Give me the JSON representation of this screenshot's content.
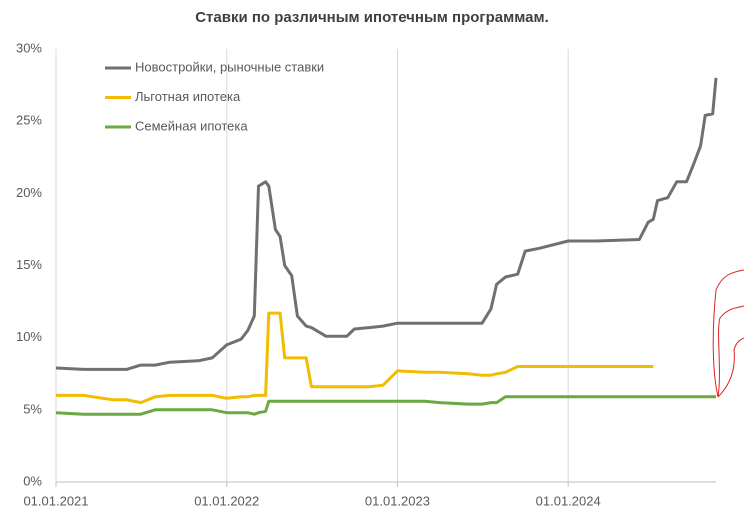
{
  "chart_data": {
    "type": "line",
    "title": "Ставки по различным ипотечным программам.",
    "x": [
      "2021-01-01",
      "2021-03-01",
      "2021-05-01",
      "2021-06-01",
      "2021-07-01",
      "2021-08-01",
      "2021-09-01",
      "2021-11-01",
      "2021-12-01",
      "2022-01-01",
      "2022-02-01",
      "2022-02-15",
      "2022-03-01",
      "2022-03-10",
      "2022-03-25",
      "2022-04-01",
      "2022-04-15",
      "2022-04-25",
      "2022-05-05",
      "2022-05-20",
      "2022-06-01",
      "2022-06-20",
      "2022-07-01",
      "2022-08-01",
      "2022-09-15",
      "2022-10-01",
      "2022-11-01",
      "2022-12-01",
      "2023-01-01",
      "2023-03-01",
      "2023-04-01",
      "2023-06-01",
      "2023-07-01",
      "2023-07-20",
      "2023-08-01",
      "2023-08-20",
      "2023-09-15",
      "2023-10-01",
      "2023-11-01",
      "2024-01-01",
      "2024-03-01",
      "2024-06-01",
      "2024-06-20",
      "2024-07-01",
      "2024-07-10",
      "2024-08-01",
      "2024-08-20",
      "2024-09-10",
      "2024-09-25",
      "2024-10-10",
      "2024-10-20",
      "2024-11-05",
      "2024-11-12"
    ],
    "series": [
      {
        "name": "Новостройки, рыночные ставки",
        "color": "#707070",
        "values": [
          7.9,
          7.8,
          7.8,
          7.8,
          8.1,
          8.1,
          8.3,
          8.4,
          8.6,
          9.5,
          9.9,
          10.5,
          11.5,
          20.5,
          20.8,
          20.5,
          17.5,
          17.0,
          15.0,
          14.3,
          11.5,
          10.8,
          10.7,
          10.1,
          10.1,
          10.6,
          10.7,
          10.8,
          11.0,
          11.0,
          11.0,
          11.0,
          11.0,
          12.0,
          13.7,
          14.2,
          14.4,
          16.0,
          16.2,
          16.7,
          16.7,
          16.8,
          18.0,
          18.2,
          19.5,
          19.7,
          20.8,
          20.8,
          22.0,
          23.3,
          25.4,
          25.5,
          28.0
        ]
      },
      {
        "name": "Льготная ипотека",
        "color": "#f2bc00",
        "values": [
          6.0,
          6.0,
          5.7,
          5.7,
          5.5,
          5.9,
          6.0,
          6.0,
          6.0,
          5.8,
          5.9,
          5.9,
          6.0,
          6.0,
          6.0,
          11.7,
          11.7,
          11.7,
          8.6,
          8.6,
          8.6,
          8.6,
          6.6,
          6.6,
          6.6,
          6.6,
          6.6,
          6.7,
          7.7,
          7.6,
          7.6,
          7.5,
          7.4,
          7.4,
          7.5,
          7.6,
          8.0,
          8.0,
          8.0,
          8.0,
          8.0,
          8.0,
          8.0,
          8.0,
          null,
          null,
          null,
          null,
          null,
          null,
          null,
          null,
          null
        ]
      },
      {
        "name": "Семейная ипотека",
        "color": "#6aa842",
        "values": [
          4.8,
          4.7,
          4.7,
          4.7,
          4.7,
          5.0,
          5.0,
          5.0,
          5.0,
          4.8,
          4.8,
          4.8,
          4.7,
          4.8,
          4.9,
          5.6,
          5.6,
          5.6,
          5.6,
          5.6,
          5.6,
          5.6,
          5.6,
          5.6,
          5.6,
          5.6,
          5.6,
          5.6,
          5.6,
          5.6,
          5.5,
          5.4,
          5.4,
          5.5,
          5.5,
          5.9,
          5.9,
          5.9,
          5.9,
          5.9,
          5.9,
          5.9,
          5.9,
          5.9,
          5.9,
          5.9,
          5.9,
          5.9,
          5.9,
          5.9,
          5.9,
          5.9,
          5.9
        ]
      }
    ],
    "xlim": [
      "2021-01-01",
      "2024-11-12"
    ],
    "xticks": [
      {
        "value": "2021-01-01",
        "label": "01.01.2021"
      },
      {
        "value": "2022-01-01",
        "label": "01.01.2022"
      },
      {
        "value": "2023-01-01",
        "label": "01.01.2023"
      },
      {
        "value": "2024-01-01",
        "label": "01.01.2024"
      }
    ],
    "ylim": [
      0,
      30
    ],
    "yticks": [
      {
        "value": 0,
        "label": "0%"
      },
      {
        "value": 5,
        "label": "5%"
      },
      {
        "value": 10,
        "label": "10%"
      },
      {
        "value": 15,
        "label": "15%"
      },
      {
        "value": 20,
        "label": "20%"
      },
      {
        "value": 25,
        "label": "25%"
      },
      {
        "value": 30,
        "label": "30%"
      }
    ],
    "grid": "x",
    "legend": "top-left"
  }
}
